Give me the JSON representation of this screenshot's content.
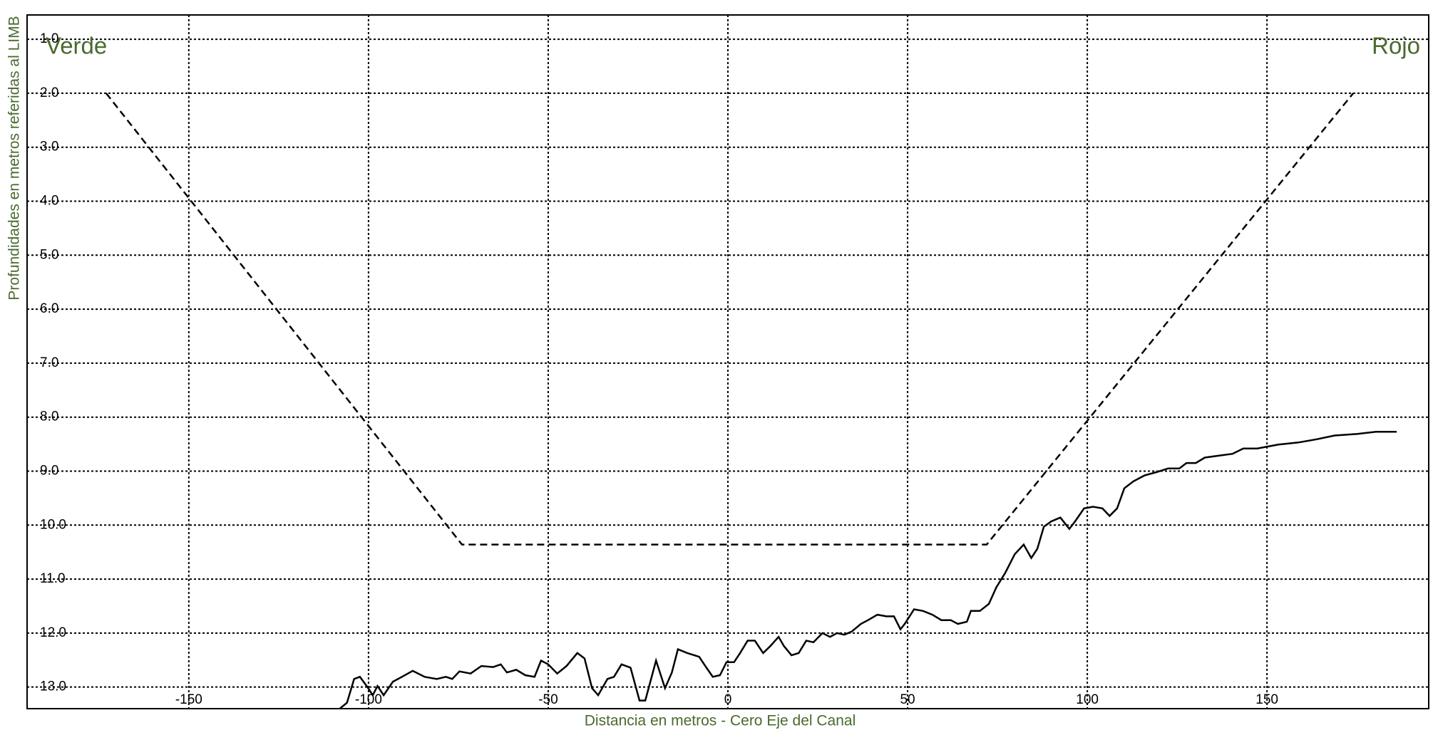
{
  "chart_data": {
    "type": "line",
    "x_label": "Distancia en metros - Cero Eje del Canal",
    "y_label": "Profundidades en metros referidas al LIMB",
    "annotations": [
      {
        "text": "Verde",
        "position": "top-left"
      },
      {
        "text": "Rojo",
        "position": "top-right"
      }
    ],
    "xlim": [
      -195,
      195
    ],
    "xticks": [
      -150,
      -100,
      -50,
      0,
      50,
      100,
      150
    ],
    "ylim": [
      0.55,
      13.4
    ],
    "y_inverted": true,
    "yticks": [
      {
        "value": 1,
        "label": "1.0"
      },
      {
        "value": 2,
        "label": "2.0"
      },
      {
        "value": 3,
        "label": "3.0"
      },
      {
        "value": 4,
        "label": "4.0"
      },
      {
        "value": 5,
        "label": "5.0"
      },
      {
        "value": 6,
        "label": "6.0"
      },
      {
        "value": 7,
        "label": "7.0"
      },
      {
        "value": 8,
        "label": "8.0"
      },
      {
        "value": 9,
        "label": "9.0"
      },
      {
        "value": 10,
        "label": "10.0"
      },
      {
        "value": 11,
        "label": "11.0"
      },
      {
        "value": 12,
        "label": "12.0"
      },
      {
        "value": 13,
        "label": "13.0"
      }
    ],
    "grid": true,
    "series": [
      {
        "color": "#000000",
        "dashed": true,
        "x": [
          -173,
          -74,
          72,
          174
        ],
        "values": [
          2.0,
          10.36,
          10.36,
          2.0
        ]
      },
      {
        "color": "#000000",
        "dashed": false,
        "x": [
          -108,
          -106,
          -104,
          -102.4,
          -100.3,
          -98.8,
          -97.5,
          -95.8,
          -93.2,
          -90.7,
          -87.7,
          -84.4,
          -81,
          -78.5,
          -76.7,
          -74.7,
          -71.6,
          -68.6,
          -65.3,
          -63.2,
          -61.5,
          -58.9,
          -56.4,
          -53.8,
          -52,
          -50,
          -47.5,
          -44.9,
          -41.9,
          -39.9,
          -37.8,
          -36.1,
          -33.5,
          -31.7,
          -29.6,
          -27.1,
          -24.6,
          -23,
          -20,
          -17.5,
          -15.6,
          -13.9,
          -11.3,
          -8,
          -6,
          -4.2,
          -2.2,
          -0.4,
          1.7,
          3.4,
          5.5,
          7.5,
          9.8,
          11.8,
          14.1,
          15.6,
          17.7,
          19.7,
          21.8,
          23.8,
          26.3,
          28.4,
          30.4,
          32.4,
          34.5,
          37,
          39,
          41.6,
          44.1,
          46.2,
          48,
          49.2,
          51.8,
          54.3,
          56.9,
          59.4,
          62,
          64,
          66.5,
          67.6,
          70.1,
          72.6,
          74.7,
          77.2,
          79.8,
          82.3,
          84.4,
          86.1,
          87.9,
          90,
          92.5,
          95,
          96.6,
          99.1,
          101.6,
          104.2,
          106.2,
          108.3,
          110.3,
          112.8,
          115.9,
          119.2,
          122.5,
          125.6,
          127.6,
          130.2,
          132.7,
          137,
          140.4,
          143.4,
          147.3,
          150.6,
          153.1,
          158.7,
          163.8,
          168.8,
          175.2,
          180.3,
          186.1
        ],
        "values": [
          13.4,
          13.29,
          12.85,
          12.81,
          13.0,
          13.15,
          12.98,
          13.15,
          12.9,
          12.81,
          12.7,
          12.81,
          12.85,
          12.81,
          12.85,
          12.71,
          12.75,
          12.61,
          12.63,
          12.58,
          12.73,
          12.68,
          12.78,
          12.81,
          12.51,
          12.58,
          12.75,
          12.61,
          12.37,
          12.47,
          13.02,
          13.15,
          12.85,
          12.81,
          12.58,
          12.64,
          13.25,
          13.25,
          12.51,
          13.02,
          12.73,
          12.3,
          12.37,
          12.44,
          12.64,
          12.81,
          12.78,
          12.54,
          12.54,
          12.37,
          12.14,
          12.14,
          12.37,
          12.24,
          12.07,
          12.24,
          12.41,
          12.37,
          12.14,
          12.17,
          12.0,
          12.07,
          12.0,
          12.03,
          11.97,
          11.83,
          11.76,
          11.66,
          11.69,
          11.69,
          11.93,
          11.83,
          11.56,
          11.59,
          11.66,
          11.76,
          11.76,
          11.83,
          11.79,
          11.59,
          11.59,
          11.46,
          11.15,
          10.88,
          10.54,
          10.36,
          10.61,
          10.44,
          10.03,
          9.93,
          9.86,
          10.07,
          9.93,
          9.69,
          9.66,
          9.69,
          9.83,
          9.69,
          9.32,
          9.19,
          9.08,
          9.02,
          8.95,
          8.95,
          8.85,
          8.85,
          8.75,
          8.71,
          8.68,
          8.58,
          8.58,
          8.54,
          8.51,
          8.47,
          8.41,
          8.34,
          8.31,
          8.27,
          8.27
        ]
      }
    ]
  }
}
